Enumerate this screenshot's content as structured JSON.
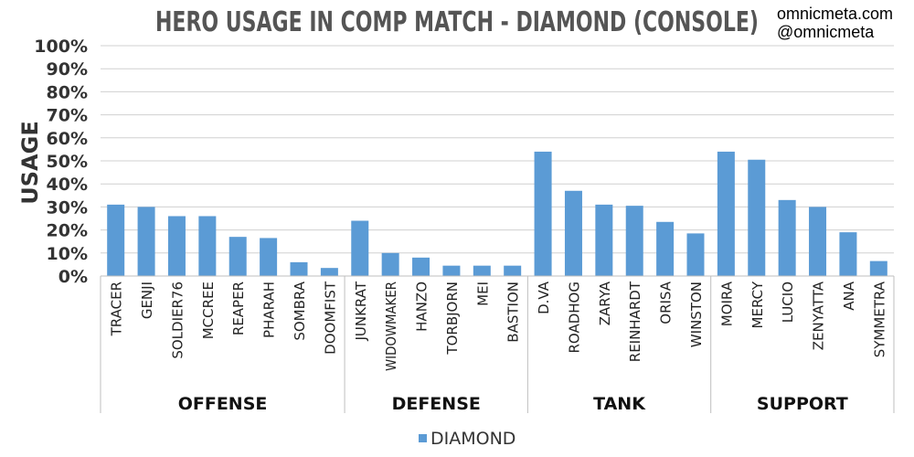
{
  "site": {
    "url": "omnicmeta.com",
    "handle": "@omnicmeta"
  },
  "chart_data": {
    "type": "bar",
    "title": "HERO USAGE IN COMP MATCH - DIAMOND (CONSOLE)",
    "ylabel": "USAGE",
    "ylim": [
      0,
      100
    ],
    "yticks": [
      "0%",
      "10%",
      "20%",
      "30%",
      "40%",
      "50%",
      "60%",
      "70%",
      "80%",
      "90%",
      "100%"
    ],
    "grid": true,
    "legend_position": "bottom",
    "categories": [
      "TRACER",
      "GENJI",
      "SOLDIER76",
      "MCCREE",
      "REAPER",
      "PHARAH",
      "SOMBRA",
      "DOOMFIST",
      "JUNKRAT",
      "WIDOWMAKER",
      "HANZO",
      "TORBJORN",
      "MEI",
      "BASTION",
      "D.VA",
      "ROADHOG",
      "ZARYA",
      "REINHARDT",
      "ORISA",
      "WINSTON",
      "MOIRA",
      "MERCY",
      "LUCIO",
      "ZENYATTA",
      "ANA",
      "SYMMETRA"
    ],
    "groups": [
      {
        "name": "OFFENSE",
        "count": 8
      },
      {
        "name": "DEFENSE",
        "count": 6
      },
      {
        "name": "TANK",
        "count": 6
      },
      {
        "name": "SUPPORT",
        "count": 6
      }
    ],
    "series": [
      {
        "name": "DIAMOND",
        "color": "#5b9bd5",
        "values": [
          31,
          30,
          26,
          26,
          17,
          16.5,
          6,
          3.5,
          24,
          10,
          8,
          4.5,
          4.5,
          4.5,
          54,
          37,
          31,
          30.5,
          23.5,
          18.5,
          54,
          50.5,
          33,
          30,
          19,
          6.5
        ]
      }
    ]
  }
}
